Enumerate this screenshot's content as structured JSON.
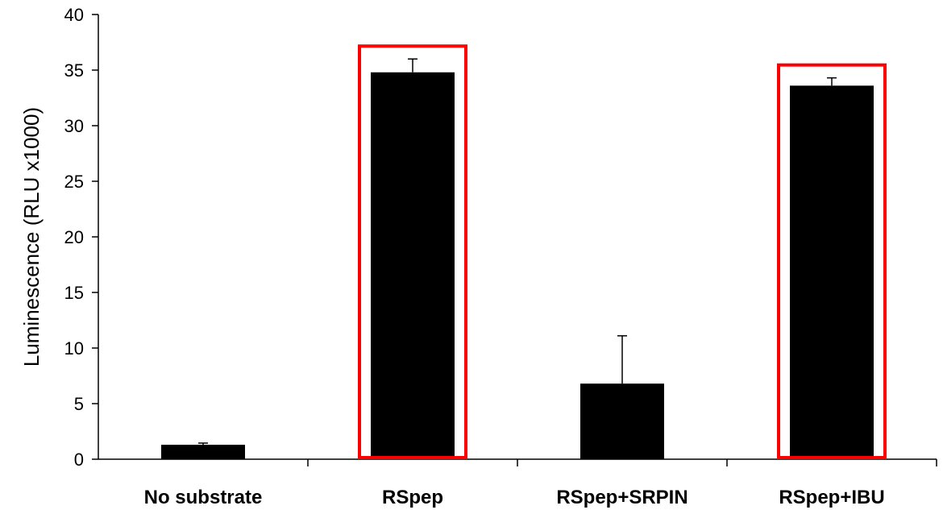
{
  "chart_data": {
    "type": "bar",
    "title": "",
    "xlabel": "",
    "ylabel": "Luminescence (RLU x1000)",
    "categories": [
      "No substrate",
      "RSpep",
      "RSpep+SRPIN",
      "RSpep+IBU"
    ],
    "series": [
      {
        "values": [
          1.3,
          34.8,
          6.8,
          33.6
        ],
        "error_plus": [
          0.15,
          1.2,
          4.3,
          0.7
        ],
        "color": "#000000"
      }
    ],
    "ylim": [
      0,
      40
    ],
    "yticks": [
      "0",
      "5",
      "10",
      "15",
      "20",
      "25",
      "30",
      "35",
      "40"
    ],
    "grid": false,
    "highlight_boxes": {
      "categories": [
        "RSpep",
        "RSpep+IBU"
      ],
      "color": "#ff0000"
    }
  }
}
